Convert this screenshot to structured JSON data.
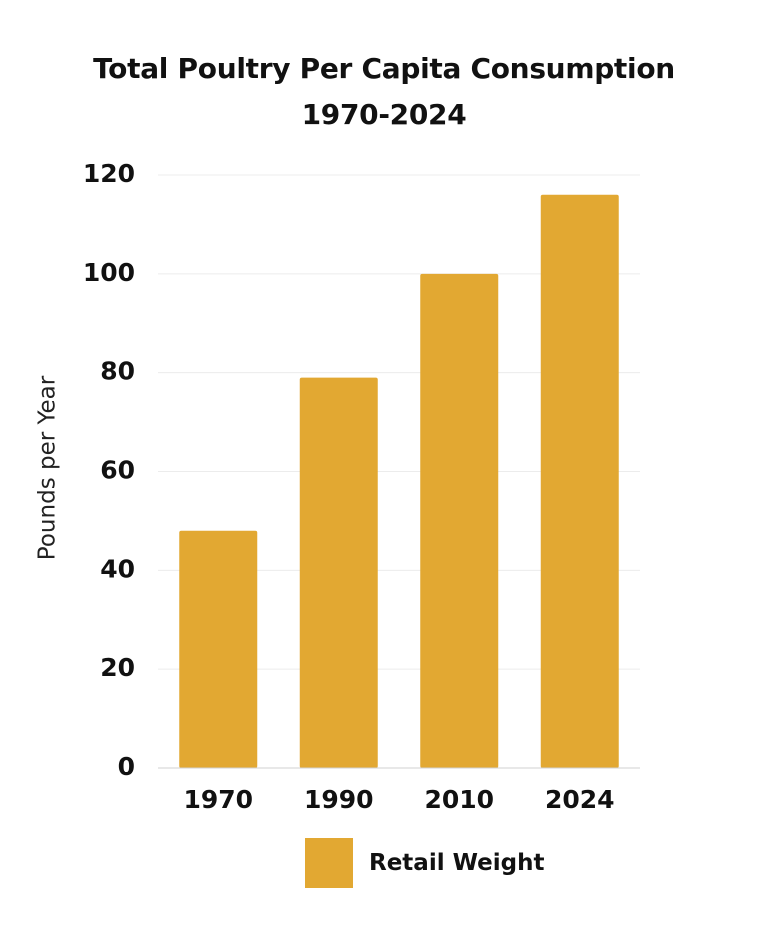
{
  "chart_data": {
    "type": "bar",
    "title_line1": "Total Poultry Per Capita Consumption",
    "title_line2": "1970-2024",
    "xlabel": "",
    "ylabel": "Pounds per Year",
    "categories": [
      "1970",
      "1990",
      "2010",
      "2024"
    ],
    "series": [
      {
        "name": "Retail Weight",
        "values": [
          48,
          79,
          100,
          116
        ],
        "color": "#E2A832"
      }
    ],
    "ylim": [
      0,
      120
    ],
    "yticks": [
      0,
      20,
      40,
      60,
      80,
      100,
      120
    ],
    "grid": true,
    "legend_position": "bottom"
  }
}
